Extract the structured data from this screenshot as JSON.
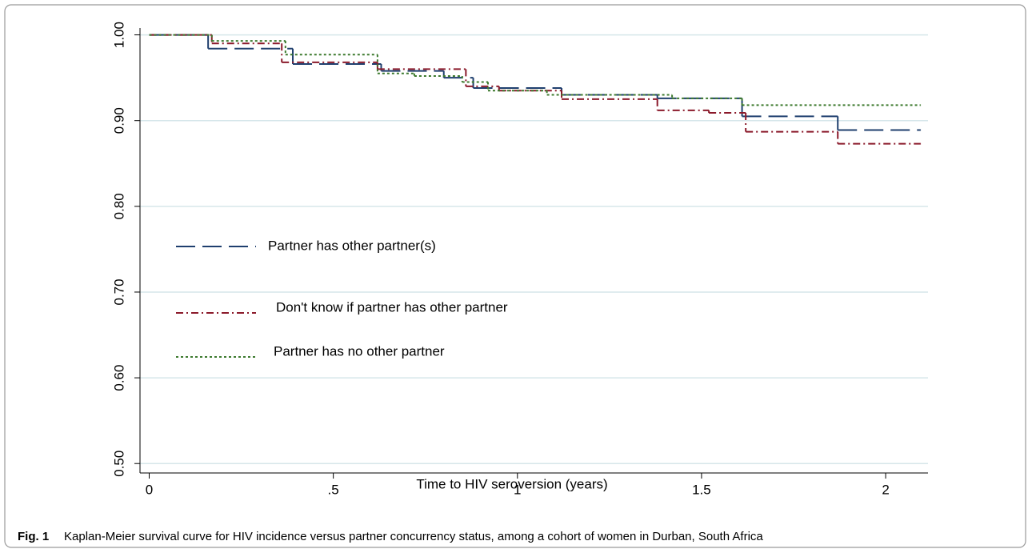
{
  "chart_data": {
    "type": "step",
    "xlabel": "Time to HIV seroversion (years)",
    "caption_label": "Fig. 1",
    "caption": "Kaplan-Meier survival curve for HIV incidence versus partner concurrency status, among a cohort of women in Durban, South Africa",
    "xlim": [
      -0.025,
      2.115
    ],
    "ylim": [
      0.489,
      1.008
    ],
    "xticks": [
      0,
      {
        "value": 0.5,
        "label": ".5"
      },
      1,
      1.5,
      2
    ],
    "yticks": [
      {
        "value": 0.5,
        "label": "0.50"
      },
      {
        "value": 0.6,
        "label": "0.60"
      },
      {
        "value": 0.7,
        "label": "0.70"
      },
      {
        "value": 0.8,
        "label": "0.80"
      },
      {
        "value": 0.9,
        "label": "0.90"
      },
      {
        "value": 1,
        "label": "1.00"
      }
    ],
    "grid": true,
    "series": [
      {
        "name": "Partner has other partner(s)",
        "color": "#1f3f6e",
        "dash": "long-dash",
        "x": [
          0,
          0.16,
          0.39,
          0.63,
          0.8,
          0.88,
          1.12,
          1.38,
          1.61,
          1.87,
          2.095
        ],
        "values": [
          1.0,
          0.984,
          0.966,
          0.958,
          0.95,
          0.938,
          0.93,
          0.926,
          0.905,
          0.889,
          0.889
        ]
      },
      {
        "name": "Don't know if partner has other partner",
        "color": "#8b1a2b",
        "dash": "dash-dot",
        "x": [
          0,
          0.17,
          0.36,
          0.62,
          0.86,
          0.95,
          1.12,
          1.38,
          1.52,
          1.62,
          1.87,
          2.095
        ],
        "values": [
          1.0,
          0.99,
          0.968,
          0.96,
          0.94,
          0.935,
          0.925,
          0.912,
          0.909,
          0.887,
          0.873,
          0.873
        ]
      },
      {
        "name": "Partner has no other partner",
        "color": "#3d7a2e",
        "dash": "dot",
        "x": [
          0,
          0.17,
          0.37,
          0.62,
          0.72,
          0.85,
          0.92,
          1.08,
          1.42,
          1.61,
          2.095
        ],
        "values": [
          1.0,
          0.993,
          0.977,
          0.955,
          0.952,
          0.945,
          0.935,
          0.93,
          0.926,
          0.918,
          0.918
        ]
      }
    ]
  }
}
